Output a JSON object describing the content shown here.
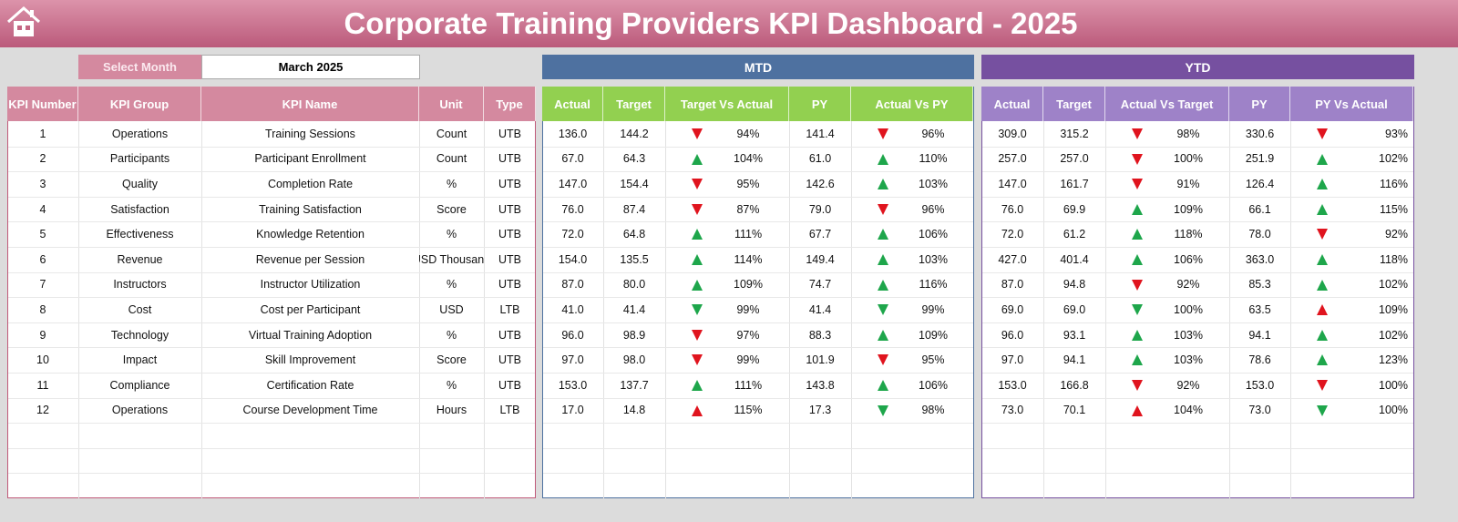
{
  "header": {
    "title": "Corporate Training Providers KPI Dashboard - 2025"
  },
  "selector": {
    "label": "Select Month",
    "value": "March 2025"
  },
  "sections": {
    "mtd": "MTD",
    "ytd": "YTD"
  },
  "table": {
    "columns": [
      "KPI Number",
      "KPI Group",
      "KPI Name",
      "Unit",
      "Type",
      "Actual",
      "Target",
      "Target Vs Actual",
      "PY",
      "Actual Vs PY",
      "Actual",
      "Target",
      "Actual Vs Target",
      "PY",
      "PY Vs Actual"
    ],
    "rows": [
      [
        "1",
        "Operations",
        "Training Sessions",
        "Count",
        "UTB",
        "136.0",
        "144.2",
        "94%",
        "141.4",
        "96%",
        "309.0",
        "315.2",
        "98%",
        "330.6",
        "93%"
      ],
      [
        "2",
        "Participants",
        "Participant Enrollment",
        "Count",
        "UTB",
        "67.0",
        "64.3",
        "104%",
        "61.0",
        "110%",
        "257.0",
        "257.0",
        "100%",
        "251.9",
        "102%"
      ],
      [
        "3",
        "Quality",
        "Completion Rate",
        "%",
        "UTB",
        "147.0",
        "154.4",
        "95%",
        "142.6",
        "103%",
        "147.0",
        "161.7",
        "91%",
        "126.4",
        "116%"
      ],
      [
        "4",
        "Satisfaction",
        "Training Satisfaction",
        "Score",
        "UTB",
        "76.0",
        "87.4",
        "87%",
        "79.0",
        "96%",
        "76.0",
        "69.9",
        "109%",
        "66.1",
        "115%"
      ],
      [
        "5",
        "Effectiveness",
        "Knowledge Retention",
        "%",
        "UTB",
        "72.0",
        "64.8",
        "111%",
        "67.7",
        "106%",
        "72.0",
        "61.2",
        "118%",
        "78.0",
        "92%"
      ],
      [
        "6",
        "Revenue",
        "Revenue per Session",
        "USD Thousand",
        "UTB",
        "154.0",
        "135.5",
        "114%",
        "149.4",
        "103%",
        "427.0",
        "401.4",
        "106%",
        "363.0",
        "118%"
      ],
      [
        "7",
        "Instructors",
        "Instructor Utilization",
        "%",
        "UTB",
        "87.0",
        "80.0",
        "109%",
        "74.7",
        "116%",
        "87.0",
        "94.8",
        "92%",
        "85.3",
        "102%"
      ],
      [
        "8",
        "Cost",
        "Cost per Participant",
        "USD",
        "LTB",
        "41.0",
        "41.4",
        "99%",
        "41.4",
        "99%",
        "69.0",
        "69.0",
        "100%",
        "63.5",
        "109%"
      ],
      [
        "9",
        "Technology",
        "Virtual Training Adoption",
        "%",
        "UTB",
        "96.0",
        "98.9",
        "97%",
        "88.3",
        "109%",
        "96.0",
        "93.1",
        "103%",
        "94.1",
        "102%"
      ],
      [
        "10",
        "Impact",
        "Skill Improvement",
        "Score",
        "UTB",
        "97.0",
        "98.0",
        "99%",
        "101.9",
        "95%",
        "97.0",
        "94.1",
        "103%",
        "78.6",
        "123%"
      ],
      [
        "11",
        "Compliance",
        "Certification Rate",
        "%",
        "UTB",
        "153.0",
        "137.7",
        "111%",
        "143.8",
        "106%",
        "153.0",
        "166.8",
        "92%",
        "153.0",
        "100%"
      ],
      [
        "12",
        "Operations",
        "Course Development Time",
        "Hours",
        "LTB",
        "17.0",
        "14.8",
        "115%",
        "17.3",
        "98%",
        "73.0",
        "70.1",
        "104%",
        "73.0",
        "100%"
      ]
    ]
  }
}
